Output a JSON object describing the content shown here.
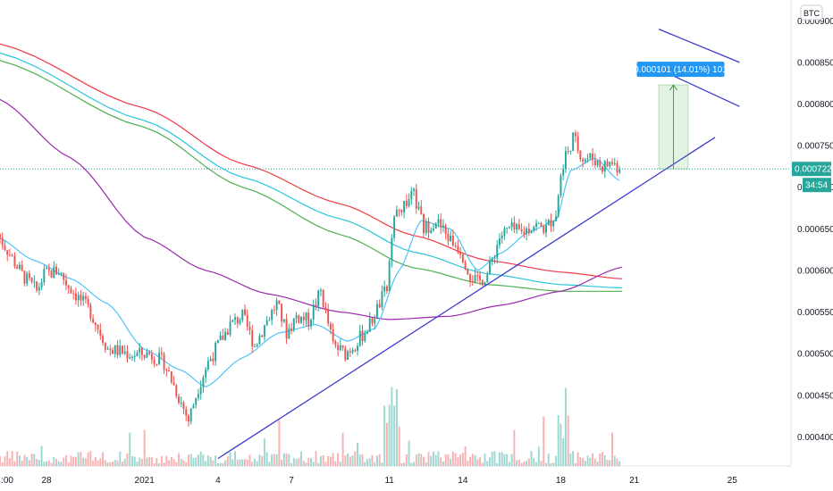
{
  "chart_data": {
    "type": "candlestick",
    "currency_label": "BTC",
    "y_ticks": [
      "0.000900",
      "0.000850",
      "0.000800",
      "0.000750",
      "0.000700",
      "0.000650",
      "0.000600",
      "0.000550",
      "0.000500",
      "0.000450",
      "0.000400"
    ],
    "x_ticks": [
      {
        "label": ":00",
        "day": -5.9
      },
      {
        "label": "28",
        "day": -4
      },
      {
        "label": "2021",
        "day": 0
      },
      {
        "label": "4",
        "day": 3
      },
      {
        "label": "7",
        "day": 6
      },
      {
        "label": "11",
        "day": 10
      },
      {
        "label": "14",
        "day": 13
      },
      {
        "label": "18",
        "day": 17
      },
      {
        "label": "21",
        "day": 20
      },
      {
        "label": "25",
        "day": 24
      }
    ],
    "y_range": [
      0.000365,
      0.000925
    ],
    "day_range": [
      -5.9,
      26.4
    ],
    "last_price": {
      "label": "0.000722",
      "value": 0.000722,
      "countdown": "34:54"
    },
    "projection": {
      "label": "0.000101 (14.01%) 101",
      "day_start": 21.0,
      "day_end": 22.2,
      "from": 0.000722,
      "to": 0.000823
    },
    "candles_ohlc_keypoints": [
      [
        -6.0,
        0.000644
      ],
      [
        -5.0,
        0.000595
      ],
      [
        -4.4,
        0.000575
      ],
      [
        -4.1,
        0.000595
      ],
      [
        -3.5,
        0.0006
      ],
      [
        -3.2,
        0.000585
      ],
      [
        -2.2,
        0.00055
      ],
      [
        -1.5,
        0.000506
      ],
      [
        -0.5,
        0.000499
      ],
      [
        0.2,
        0.0005
      ],
      [
        0.8,
        0.000489
      ],
      [
        1.3,
        0.000455
      ],
      [
        1.8,
        0.00042
      ],
      [
        2.2,
        0.00046
      ],
      [
        2.6,
        0.00049
      ],
      [
        3.0,
        0.00051
      ],
      [
        3.5,
        0.000535
      ],
      [
        4.0,
        0.000545
      ],
      [
        4.5,
        0.00051
      ],
      [
        5.0,
        0.00054
      ],
      [
        5.4,
        0.00056
      ],
      [
        5.8,
        0.000525
      ],
      [
        6.2,
        0.000545
      ],
      [
        6.7,
        0.00054
      ],
      [
        7.2,
        0.000575
      ],
      [
        7.7,
        0.00051
      ],
      [
        8.2,
        0.0005
      ],
      [
        8.7,
        0.000515
      ],
      [
        9.2,
        0.000535
      ],
      [
        9.6,
        0.00056
      ],
      [
        9.9,
        0.00058
      ],
      [
        10.2,
        0.00066
      ],
      [
        10.6,
        0.00068
      ],
      [
        11.0,
        0.00069
      ],
      [
        11.4,
        0.00065
      ],
      [
        11.9,
        0.00066
      ],
      [
        12.4,
        0.00064
      ],
      [
        12.9,
        0.000625
      ],
      [
        13.3,
        0.000595
      ],
      [
        13.6,
        0.000585
      ],
      [
        14.0,
        0.000595
      ],
      [
        14.5,
        0.00064
      ],
      [
        14.9,
        0.00065
      ],
      [
        15.4,
        0.000645
      ],
      [
        15.9,
        0.000655
      ],
      [
        16.4,
        0.00065
      ],
      [
        16.8,
        0.00067
      ],
      [
        17.1,
        0.00073
      ],
      [
        17.5,
        0.00076
      ],
      [
        17.9,
        0.000735
      ],
      [
        18.3,
        0.000735
      ],
      [
        18.7,
        0.000725
      ],
      [
        19.1,
        0.00073
      ],
      [
        19.4,
        0.000722
      ]
    ],
    "moving_averages": [
      {
        "color": "#f23645",
        "points": [
          [
            -6.0,
            0.000873
          ],
          [
            0,
            0.000795
          ],
          [
            4,
            0.000728
          ],
          [
            8,
            0.00068
          ],
          [
            11,
            0.000642
          ],
          [
            14,
            0.000612
          ],
          [
            17,
            0.000598
          ],
          [
            19.5,
            0.00059
          ]
        ]
      },
      {
        "color": "#26c6da",
        "points": [
          [
            -6.0,
            0.000862
          ],
          [
            0,
            0.00078
          ],
          [
            4,
            0.000712
          ],
          [
            8,
            0.000662
          ],
          [
            11,
            0.000622
          ],
          [
            14,
            0.000596
          ],
          [
            17,
            0.000583
          ],
          [
            19.5,
            0.000579
          ]
        ]
      },
      {
        "color": "#4caf50",
        "points": [
          [
            -6.0,
            0.000853
          ],
          [
            0,
            0.000772
          ],
          [
            4,
            0.0007
          ],
          [
            8,
            0.000643
          ],
          [
            11,
            0.000603
          ],
          [
            14,
            0.000583
          ],
          [
            17,
            0.000575
          ],
          [
            19.5,
            0.000575
          ]
        ]
      },
      {
        "color": "#9c27b0",
        "points": [
          [
            -6.0,
            0.000807
          ],
          [
            -3,
            0.000735
          ],
          [
            0,
            0.00064
          ],
          [
            2.5,
            0.0006
          ],
          [
            5,
            0.000572
          ],
          [
            8,
            0.00055
          ],
          [
            10,
            0.000541
          ],
          [
            12.5,
            0.000545
          ],
          [
            14.5,
            0.000558
          ],
          [
            17,
            0.000575
          ],
          [
            19.5,
            0.000604
          ]
        ]
      },
      {
        "color": "#4fc3f7",
        "points": [
          [
            -6.0,
            0.00064
          ],
          [
            -4.5,
            0.000612
          ],
          [
            -3,
            0.00059
          ],
          [
            -1.5,
            0.00056
          ],
          [
            0,
            0.000505
          ],
          [
            1.5,
            0.00048
          ],
          [
            2.5,
            0.00046
          ],
          [
            4,
            0.000495
          ],
          [
            5.5,
            0.000525
          ],
          [
            7,
            0.000535
          ],
          [
            8.3,
            0.000515
          ],
          [
            9.4,
            0.00053
          ],
          [
            10.4,
            0.0006
          ],
          [
            11.3,
            0.00066
          ],
          [
            12.5,
            0.00065
          ],
          [
            13.6,
            0.0006
          ],
          [
            14.5,
            0.00062
          ],
          [
            15.8,
            0.000648
          ],
          [
            16.8,
            0.00066
          ],
          [
            17.4,
            0.00072
          ],
          [
            18.4,
            0.000735
          ],
          [
            19.4,
            0.000708
          ]
        ]
      }
    ],
    "trend_lines": [
      {
        "color": "#3c3ccf",
        "from": [
          3.0,
          0.000374
        ],
        "to": [
          23.3,
          0.00076
        ]
      },
      {
        "color": "#3c3ccf",
        "from": [
          21.0,
          0.00089
        ],
        "to": [
          24.3,
          0.00085
        ]
      },
      {
        "color": "#3c3ccf",
        "from": [
          21.0,
          0.000842
        ],
        "to": [
          24.3,
          0.000797
        ]
      }
    ]
  }
}
